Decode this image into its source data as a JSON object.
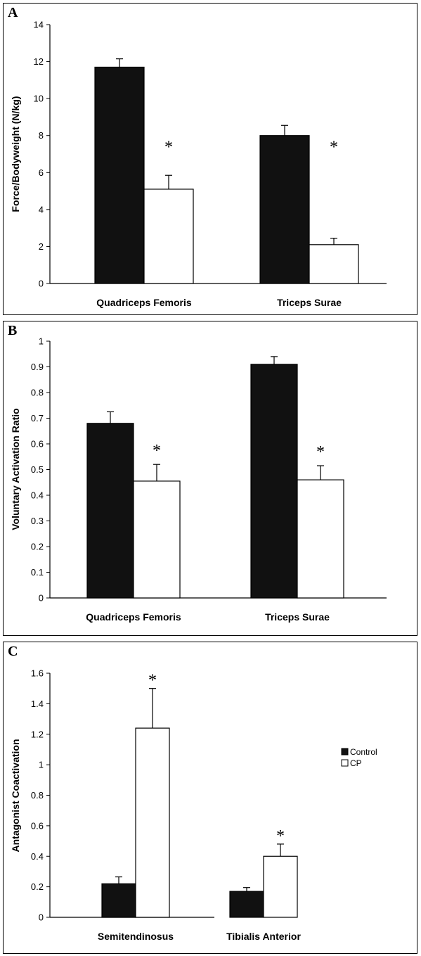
{
  "chart_data": [
    {
      "panel": "A",
      "type": "bar",
      "ylabel": "Force/Bodyweight (N/kg)",
      "categories": [
        "Quadriceps Femoris",
        "Triceps Surae"
      ],
      "ylim": [
        0,
        14
      ],
      "yticks": [
        0,
        2,
        4,
        6,
        8,
        10,
        12,
        14
      ],
      "series": [
        {
          "name": "Control",
          "color": "#111111",
          "values": [
            11.7,
            8.0
          ],
          "errors": [
            0.45,
            0.55
          ]
        },
        {
          "name": "CP",
          "color": "#ffffff",
          "values": [
            5.1,
            2.1
          ],
          "errors": [
            0.75,
            0.35
          ]
        }
      ],
      "annotations": [
        "*",
        "*"
      ],
      "grid": false
    },
    {
      "panel": "B",
      "type": "bar",
      "ylabel": "Voluntary Activation Ratio",
      "categories": [
        "Quadriceps Femoris",
        "Triceps Surae"
      ],
      "ylim": [
        0,
        1
      ],
      "yticks": [
        "0",
        "0.1",
        "0.2",
        "0.3",
        "0.4",
        "0.5",
        "0.6",
        "0.7",
        "0.8",
        "0.9",
        "1"
      ],
      "series": [
        {
          "name": "Control",
          "color": "#111111",
          "values": [
            0.68,
            0.91
          ],
          "errors": [
            0.045,
            0.03
          ]
        },
        {
          "name": "CP",
          "color": "#ffffff",
          "values": [
            0.455,
            0.46
          ],
          "errors": [
            0.065,
            0.055
          ]
        }
      ],
      "annotations": [
        "*",
        "*"
      ],
      "grid": false
    },
    {
      "panel": "C",
      "type": "bar",
      "ylabel": "Antagonist Coactivation",
      "categories": [
        "Semitendinosus",
        "Tibialis Anterior"
      ],
      "ylim": [
        0,
        1.6
      ],
      "yticks": [
        "0",
        "0.2",
        "0.4",
        "0.6",
        "0.8",
        "1",
        "1.2",
        "1.4",
        "1.6"
      ],
      "series": [
        {
          "name": "Control",
          "color": "#111111",
          "values": [
            0.22,
            0.17
          ],
          "errors": [
            0.045,
            0.025
          ]
        },
        {
          "name": "CP",
          "color": "#ffffff",
          "values": [
            1.24,
            0.4
          ],
          "errors": [
            0.26,
            0.08
          ]
        }
      ],
      "annotations": [
        "*",
        "*"
      ],
      "legend": [
        "Control",
        "CP"
      ],
      "legend_position": "right",
      "grid": false
    }
  ]
}
